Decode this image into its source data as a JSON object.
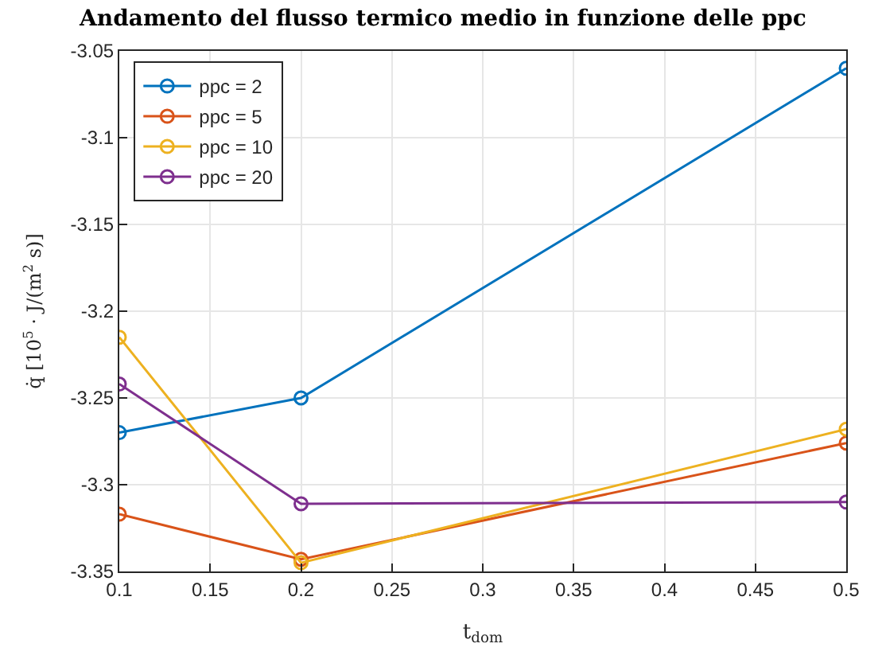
{
  "chart_data": {
    "type": "line",
    "title": "Andamento del flusso termico medio in funzione delle ppc",
    "xlabel": "t$_{dom}$",
    "ylabel": "q̇ [10$^{5}$ · J/(m$^{2}$ s)]",
    "x": [
      0.1,
      0.2,
      0.5
    ],
    "series": [
      {
        "name": "ppc = 2",
        "color": "#0072bd",
        "values": [
          -3.27,
          -3.25,
          -3.06
        ]
      },
      {
        "name": "ppc = 5",
        "color": "#d95319",
        "values": [
          -3.317,
          -3.343,
          -3.276
        ]
      },
      {
        "name": "ppc = 10",
        "color": "#edb120",
        "values": [
          -3.215,
          -3.345,
          -3.268
        ]
      },
      {
        "name": "ppc = 20",
        "color": "#7e2f8e",
        "values": [
          -3.242,
          -3.311,
          -3.31
        ]
      }
    ],
    "xlim": [
      0.1,
      0.5
    ],
    "ylim": [
      -3.35,
      -3.05
    ],
    "xticks": [
      0.1,
      0.15,
      0.2,
      0.25,
      0.3,
      0.35,
      0.4,
      0.45,
      0.5
    ],
    "yticks": [
      -3.35,
      -3.3,
      -3.25,
      -3.2,
      -3.15,
      -3.1,
      -3.05
    ],
    "grid": true,
    "legend": "top left",
    "marker": "circle",
    "line_style": "solid"
  }
}
